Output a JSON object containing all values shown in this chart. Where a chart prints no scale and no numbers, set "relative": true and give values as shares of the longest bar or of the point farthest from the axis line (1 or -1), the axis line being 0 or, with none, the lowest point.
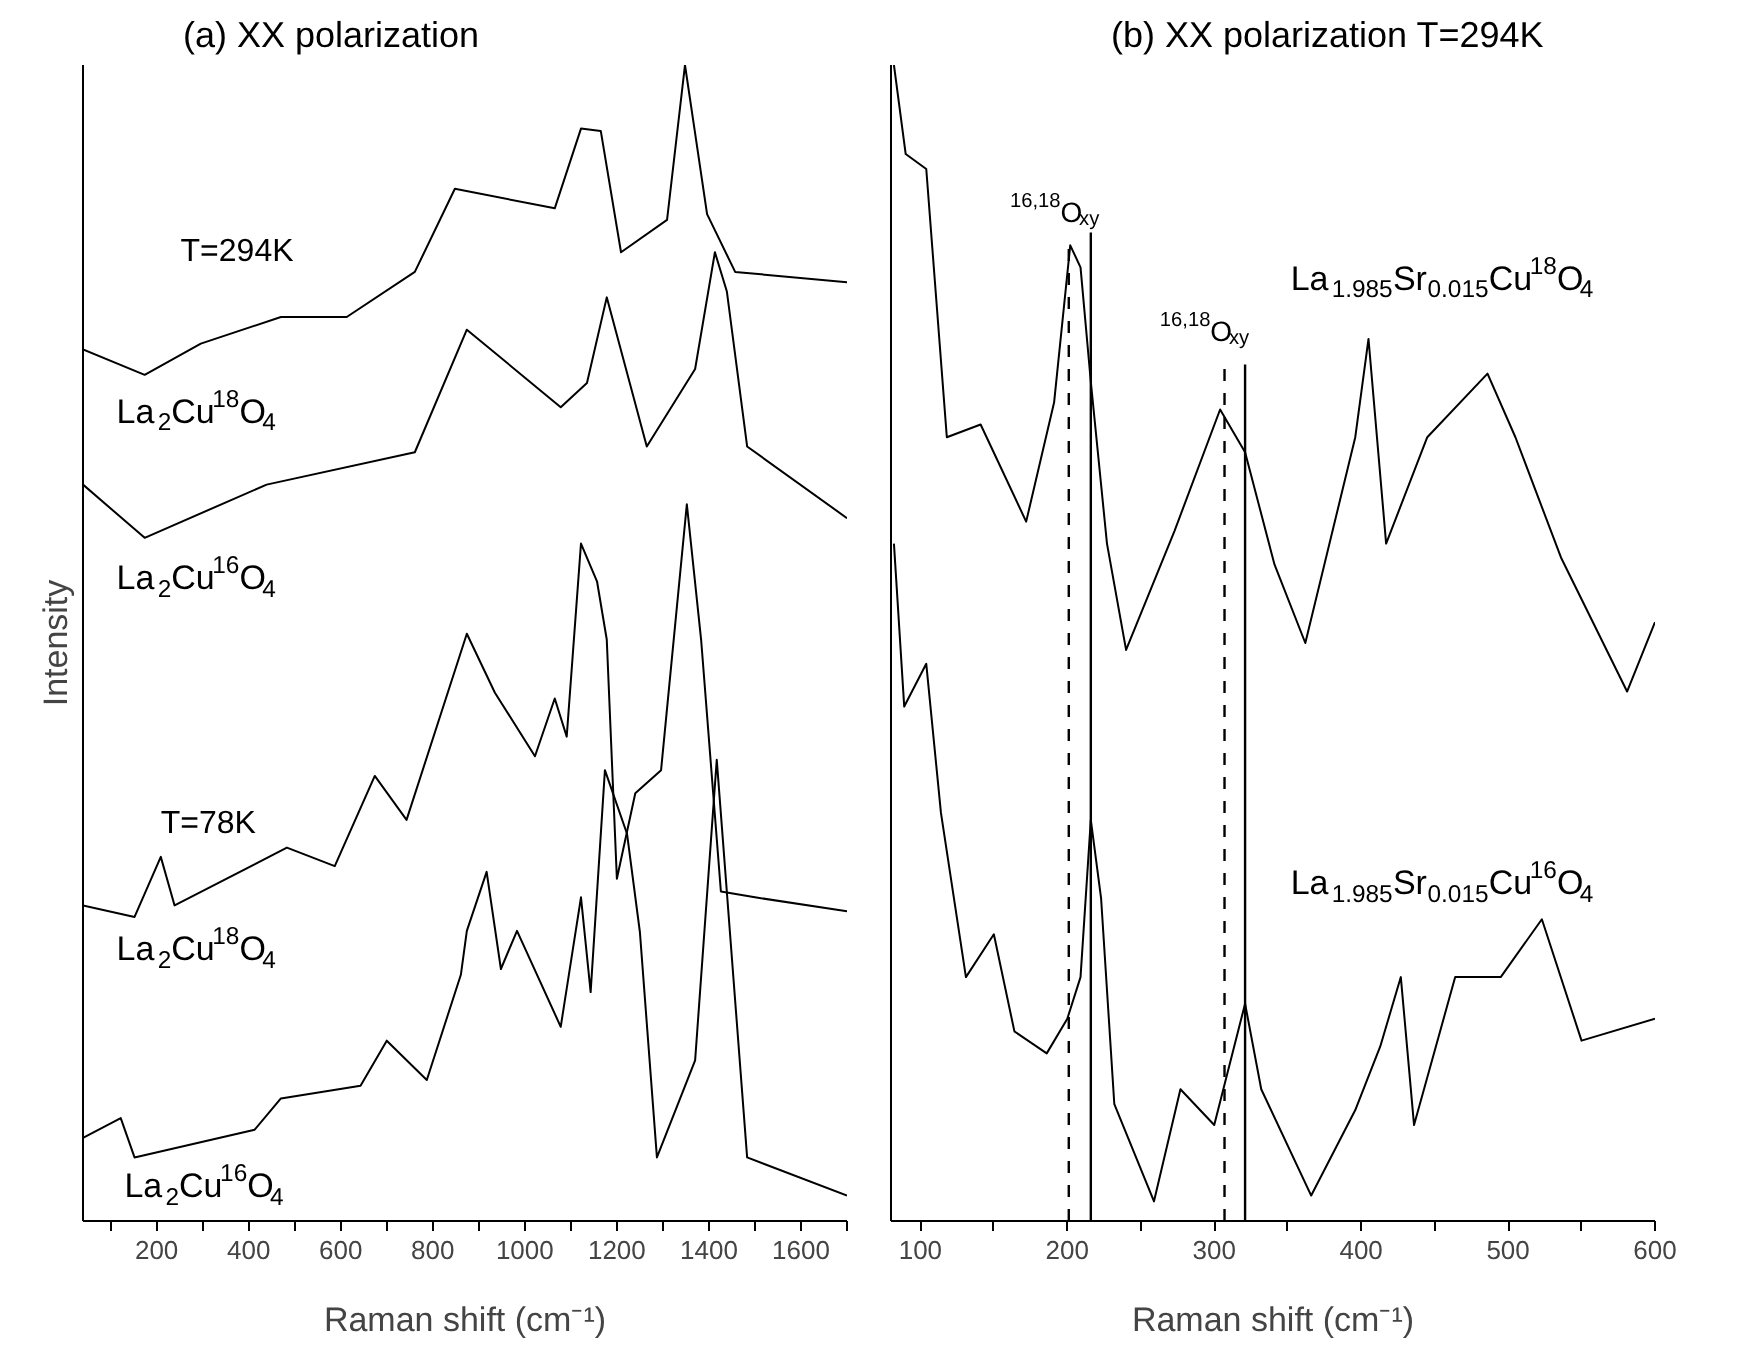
{
  "chart_data": [
    {
      "type": "line",
      "title": "(a)   XX polarization",
      "xlabel": "Raman shift (cm⁻¹)",
      "ylabel": "Intensity",
      "relative": true,
      "tick_labels": "x",
      "grid": false,
      "marker": "none",
      "line_style": "solid",
      "xlim": [
        40,
        1700
      ],
      "xticks": [
        {
          "value": 100,
          "label": null
        },
        200,
        {
          "value": 300,
          "label": null
        },
        400,
        {
          "value": 500,
          "label": null
        },
        600,
        {
          "value": 700,
          "label": null
        },
        800,
        {
          "value": 900,
          "label": null
        },
        1000,
        {
          "value": 1100,
          "label": null
        },
        1200,
        {
          "value": 1300,
          "label": null
        },
        1400,
        {
          "value": 1500,
          "label": null
        },
        1600,
        {
          "value": 1700,
          "label": null
        }
      ],
      "annotations": [
        "T=294K",
        "T=78K"
      ],
      "series": [
        {
          "name": "La$_{2}$Cu$^{18}$O$_{4}$",
          "color": "#000000",
          "x": [
            40,
            174,
            296,
            470,
            613,
            761,
            848,
            1065,
            1122,
            1165,
            1209,
            1309,
            1348,
            1396,
            1457,
            1700
          ],
          "values": [
            0.754,
            0.732,
            0.759,
            0.782,
            0.782,
            0.821,
            0.893,
            0.876,
            0.945,
            0.943,
            0.838,
            0.866,
            1.0,
            0.871,
            0.821,
            0.812
          ]
        },
        {
          "name": "La$_{2}$Cu$^{16}$O$_{4}$",
          "color": "#000000",
          "x": [
            40,
            174,
            439,
            761,
            874,
            1078,
            1135,
            1178,
            1265,
            1370,
            1413,
            1439,
            1483,
            1700
          ],
          "values": [
            0.637,
            0.591,
            0.637,
            0.665,
            0.771,
            0.704,
            0.725,
            0.799,
            0.67,
            0.737,
            0.838,
            0.804,
            0.67,
            0.608
          ]
        },
        {
          "name": "La$_{2}$Cu$^{18}$O$_{4}$",
          "color": "#000000",
          "x": [
            40,
            152,
            209,
            239,
            483,
            587,
            674,
            743,
            874,
            935,
            1022,
            1065,
            1091,
            1122,
            1157,
            1178,
            1200,
            1240,
            1296,
            1352,
            1383,
            1426,
            1500,
            1700
          ],
          "values": [
            0.273,
            0.263,
            0.315,
            0.273,
            0.323,
            0.307,
            0.385,
            0.347,
            0.508,
            0.457,
            0.402,
            0.452,
            0.419,
            0.586,
            0.553,
            0.503,
            0.296,
            0.37,
            0.39,
            0.62,
            0.503,
            0.285,
            0.28,
            0.268
          ]
        },
        {
          "name": "La$_{2}$Cu$^{16}$O$_{4}$",
          "color": "#000000",
          "x": [
            40,
            122,
            152,
            413,
            470,
            643,
            700,
            787,
            861,
            874,
            917,
            948,
            983,
            1078,
            1122,
            1143,
            1174,
            1222,
            1250,
            1287,
            1370,
            1417,
            1483,
            1700
          ],
          "values": [
            0.072,
            0.089,
            0.055,
            0.079,
            0.106,
            0.117,
            0.156,
            0.122,
            0.213,
            0.251,
            0.302,
            0.218,
            0.251,
            0.168,
            0.28,
            0.198,
            0.39,
            0.335,
            0.25,
            0.055,
            0.139,
            0.399,
            0.055,
            0.022
          ]
        }
      ]
    },
    {
      "type": "line",
      "title": "(b)  XX polarization  T=294K",
      "xlabel": "Raman shift (cm⁻¹)",
      "relative": true,
      "tick_labels": "x",
      "grid": false,
      "marker": "none",
      "line_style": "solid",
      "xlim": [
        80,
        600
      ],
      "xticks": [
        100,
        {
          "value": 150,
          "label": null
        },
        200,
        {
          "value": 250,
          "label": null
        },
        300,
        {
          "value": 350,
          "label": null
        },
        400,
        {
          "value": 450,
          "label": null
        },
        500,
        {
          "value": 550,
          "label": null
        },
        600
      ],
      "ref_lines": [
        {
          "axis": "x",
          "value": 201,
          "line_style": "dashed",
          "color": "#000000"
        },
        {
          "axis": "x",
          "value": 216,
          "label": "$^{16,18}$O$_{xy}$",
          "line_style": "solid",
          "color": "#000000"
        },
        {
          "axis": "x",
          "value": 307,
          "line_style": "dashed",
          "color": "#000000"
        },
        {
          "axis": "x",
          "value": 321,
          "label": "$^{16,18}$O$_{xy}$",
          "line_style": "solid",
          "color": "#000000"
        }
      ],
      "series": [
        {
          "name": "La$_{1.985}$Sr$_{0.015}$Cu$^{18}$O$_{4}$",
          "color": "#000000",
          "x": [
            82,
            90,
            104,
            118,
            141,
            172,
            191,
            202,
            209,
            216,
            227,
            240,
            273,
            304,
            321,
            341,
            362,
            396,
            405,
            417,
            445,
            486,
            505,
            536,
            581,
            600
          ],
          "values": [
            1.0,
            0.923,
            0.91,
            0.678,
            0.689,
            0.605,
            0.708,
            0.844,
            0.825,
            0.726,
            0.586,
            0.494,
            0.597,
            0.702,
            0.665,
            0.568,
            0.5,
            0.678,
            0.763,
            0.586,
            0.678,
            0.733,
            0.678,
            0.574,
            0.458,
            0.518
          ]
        },
        {
          "name": "La$_{1.985}$Sr$_{0.015}$Cu$^{16}$O$_{4}$",
          "color": "#000000",
          "x": [
            82,
            89,
            104,
            114,
            131,
            150,
            164,
            186,
            200,
            209,
            216,
            223,
            232,
            259,
            277,
            300,
            321,
            332,
            366,
            396,
            413,
            427,
            436,
            464,
            495,
            523,
            550,
            600
          ],
          "values": [
            0.586,
            0.445,
            0.482,
            0.353,
            0.211,
            0.248,
            0.164,
            0.145,
            0.175,
            0.211,
            0.347,
            0.279,
            0.101,
            0.017,
            0.114,
            0.083,
            0.188,
            0.114,
            0.022,
            0.096,
            0.151,
            0.211,
            0.083,
            0.211,
            0.211,
            0.261,
            0.156,
            0.175
          ]
        }
      ]
    }
  ]
}
